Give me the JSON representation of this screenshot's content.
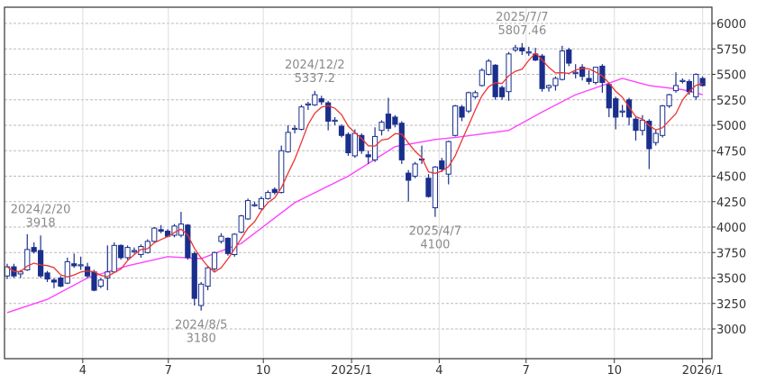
{
  "chart_data": {
    "type": "candlestick",
    "title": "",
    "interval": "weekly",
    "ylim": [
      2850,
      6120
    ],
    "y_ticks": [
      3000,
      3250,
      3500,
      3750,
      4000,
      4250,
      4500,
      4750,
      5000,
      5250,
      5500,
      5750,
      6000
    ],
    "x_ticks": [
      {
        "label": "4",
        "week": 11.3
      },
      {
        "label": "7",
        "week": 24.1
      },
      {
        "label": "10",
        "week": 38.3
      },
      {
        "label": "2025/1",
        "week": 51.5
      },
      {
        "label": "4",
        "week": 64.6
      },
      {
        "label": "7",
        "week": 77.6
      },
      {
        "label": "10",
        "week": 90.8
      },
      {
        "label": "2026/1",
        "week": 104
      }
    ],
    "grid": true,
    "colors": {
      "up_body": "#ffffff",
      "down_body": "#1a2f8c",
      "candle_edge": "#1a2f8c",
      "ma_short": "#ee3333",
      "ma_long": "#ff44ff",
      "grid": "#bbbbbb",
      "annotation": "#8a8a8a"
    },
    "ohlc": [
      [
        3520,
        3640,
        3490,
        3610
      ],
      [
        3610,
        3640,
        3500,
        3520
      ],
      [
        3540,
        3580,
        3500,
        3560
      ],
      [
        3580,
        3930,
        3570,
        3780
      ],
      [
        3800,
        3850,
        3740,
        3760
      ],
      [
        3770,
        3918,
        3500,
        3520
      ],
      [
        3550,
        3570,
        3460,
        3490
      ],
      [
        3480,
        3500,
        3400,
        3460
      ],
      [
        3500,
        3520,
        3410,
        3420
      ],
      [
        3450,
        3700,
        3440,
        3660
      ],
      [
        3640,
        3740,
        3600,
        3620
      ],
      [
        3620,
        3710,
        3580,
        3630
      ],
      [
        3610,
        3650,
        3500,
        3520
      ],
      [
        3560,
        3580,
        3370,
        3380
      ],
      [
        3420,
        3500,
        3400,
        3480
      ],
      [
        3500,
        3820,
        3380,
        3560
      ],
      [
        3560,
        3850,
        3550,
        3820
      ],
      [
        3820,
        3830,
        3680,
        3700
      ],
      [
        3700,
        3820,
        3680,
        3800
      ],
      [
        3770,
        3800,
        3740,
        3770
      ],
      [
        3730,
        3830,
        3700,
        3810
      ],
      [
        3750,
        3880,
        3740,
        3860
      ],
      [
        3860,
        4000,
        3850,
        3990
      ],
      [
        3975,
        4020,
        3940,
        3960
      ],
      [
        3960,
        3980,
        3900,
        3910
      ],
      [
        3920,
        4030,
        3900,
        4010
      ],
      [
        3920,
        4150,
        3900,
        4030
      ],
      [
        4020,
        4030,
        3680,
        3700
      ],
      [
        3740,
        3760,
        3230,
        3300
      ],
      [
        3230,
        3460,
        3180,
        3440
      ],
      [
        3420,
        3620,
        3380,
        3600
      ],
      [
        3590,
        3760,
        3570,
        3750
      ],
      [
        3860,
        3940,
        3840,
        3910
      ],
      [
        3890,
        3900,
        3720,
        3740
      ],
      [
        3730,
        3940,
        3710,
        3930
      ],
      [
        3950,
        4120,
        3940,
        4110
      ],
      [
        4080,
        4280,
        4070,
        4260
      ],
      [
        4220,
        4250,
        4200,
        4220
      ],
      [
        4180,
        4300,
        4170,
        4280
      ],
      [
        4280,
        4360,
        4270,
        4340
      ],
      [
        4370,
        4390,
        4320,
        4340
      ],
      [
        4340,
        4800,
        4330,
        4750
      ],
      [
        4740,
        5000,
        4730,
        4930
      ],
      [
        4970,
        5000,
        4920,
        4970
      ],
      [
        4960,
        5200,
        4950,
        5180
      ],
      [
        5210,
        5230,
        5150,
        5210
      ],
      [
        5200,
        5337.2,
        5190,
        5300
      ],
      [
        5260,
        5290,
        5200,
        5230
      ],
      [
        5220,
        5240,
        4950,
        5040
      ],
      [
        5050,
        5080,
        5000,
        5050
      ],
      [
        4990,
        5010,
        4880,
        4900
      ],
      [
        4910,
        4930,
        4700,
        4730
      ],
      [
        4700,
        4960,
        4680,
        4920
      ],
      [
        4900,
        4920,
        4720,
        4750
      ],
      [
        4710,
        4750,
        4620,
        4690
      ],
      [
        4660,
        4980,
        4640,
        4890
      ],
      [
        4950,
        5050,
        4900,
        5030
      ],
      [
        5110,
        5270,
        4940,
        4970
      ],
      [
        5080,
        5100,
        4980,
        5010
      ],
      [
        5020,
        5040,
        4620,
        4660
      ],
      [
        4530,
        4560,
        4250,
        4460
      ],
      [
        4500,
        4640,
        4480,
        4620
      ],
      [
        4670,
        4800,
        4620,
        4670
      ],
      [
        4480,
        4520,
        4290,
        4300
      ],
      [
        4190,
        4600,
        4100,
        4590
      ],
      [
        4650,
        4680,
        4540,
        4570
      ],
      [
        4520,
        4850,
        4420,
        4840
      ],
      [
        4900,
        5200,
        4890,
        5190
      ],
      [
        5180,
        5200,
        5040,
        5080
      ],
      [
        5140,
        5330,
        5120,
        5320
      ],
      [
        5280,
        5340,
        5260,
        5320
      ],
      [
        5390,
        5560,
        5380,
        5540
      ],
      [
        5500,
        5650,
        5490,
        5630
      ],
      [
        5590,
        5600,
        5250,
        5280
      ],
      [
        5370,
        5390,
        5250,
        5280
      ],
      [
        5330,
        5720,
        5240,
        5700
      ],
      [
        5740,
        5790,
        5720,
        5760
      ],
      [
        5760,
        5807.46,
        5690,
        5730
      ],
      [
        5720,
        5770,
        5680,
        5720
      ],
      [
        5700,
        5760,
        5630,
        5640
      ],
      [
        5680,
        5700,
        5330,
        5360
      ],
      [
        5370,
        5400,
        5330,
        5390
      ],
      [
        5390,
        5480,
        5340,
        5460
      ],
      [
        5450,
        5780,
        5440,
        5730
      ],
      [
        5740,
        5760,
        5580,
        5610
      ],
      [
        5520,
        5600,
        5460,
        5520
      ],
      [
        5570,
        5600,
        5440,
        5480
      ],
      [
        5460,
        5540,
        5400,
        5430
      ],
      [
        5420,
        5570,
        5400,
        5570
      ],
      [
        5580,
        5600,
        5320,
        5420
      ],
      [
        5400,
        5410,
        5080,
        5170
      ],
      [
        5260,
        5280,
        4960,
        5080
      ],
      [
        5140,
        5200,
        5080,
        5140
      ],
      [
        5250,
        5270,
        5000,
        5080
      ],
      [
        5060,
        5080,
        4850,
        4950
      ],
      [
        4950,
        5100,
        4900,
        5050
      ],
      [
        5040,
        5060,
        4570,
        4770
      ],
      [
        4830,
        4960,
        4800,
        4920
      ],
      [
        4900,
        5200,
        4880,
        5190
      ],
      [
        5190,
        5310,
        5170,
        5300
      ],
      [
        5340,
        5520,
        5320,
        5390
      ],
      [
        5440,
        5460,
        5410,
        5440
      ],
      [
        5430,
        5450,
        5300,
        5330
      ],
      [
        5280,
        5510,
        5250,
        5500
      ],
      [
        5460,
        5480,
        5380,
        5390
      ]
    ],
    "ma_short_period": 5,
    "ma_long_points": [
      [
        0,
        3160
      ],
      [
        6,
        3290
      ],
      [
        12,
        3500
      ],
      [
        18,
        3620
      ],
      [
        24,
        3710
      ],
      [
        29,
        3690
      ],
      [
        35,
        3840
      ],
      [
        43,
        4240
      ],
      [
        51,
        4500
      ],
      [
        58,
        4790
      ],
      [
        64,
        4860
      ],
      [
        67,
        4880
      ],
      [
        75,
        4950
      ],
      [
        80,
        5130
      ],
      [
        85,
        5300
      ],
      [
        89,
        5390
      ],
      [
        92,
        5460
      ],
      [
        96,
        5390
      ],
      [
        101,
        5350
      ],
      [
        104,
        5300
      ]
    ],
    "annotations": [
      {
        "date": "2024/2/20",
        "value": "3918",
        "week": 5,
        "position": "above"
      },
      {
        "date": "2024/8/5",
        "value": "3180",
        "week": 29,
        "position": "below"
      },
      {
        "date": "2024/12/2",
        "value": "5337.2",
        "week": 46,
        "position": "above"
      },
      {
        "date": "2025/4/7",
        "value": "4100",
        "week": 64,
        "position": "below"
      },
      {
        "date": "2025/7/7",
        "value": "5807.46",
        "week": 77,
        "position": "above"
      }
    ]
  }
}
